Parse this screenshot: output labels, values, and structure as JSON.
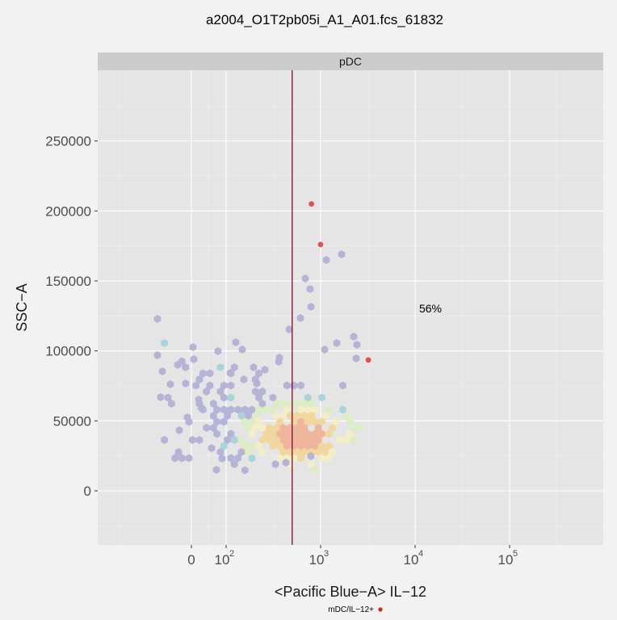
{
  "colors": {
    "panel_bg": "#e5e5e5",
    "strip_bg": "#cccccc",
    "page_bg": "#f2f2f2",
    "gate_line": "#7a0d2a",
    "pop_point": "#e05050",
    "legend_dot": "#e0201a",
    "hex_scale": [
      "#b5b3d6",
      "#a9d4dc",
      "#dcecc4",
      "#f3eec7",
      "#f1d79e",
      "#eeb59a",
      "#e37f80"
    ]
  },
  "chart_data": {
    "type": "scatter",
    "subtype": "hexbin",
    "title": "a2004_O1T2pb05i_A1_A01.fcs_61832",
    "strip": "pDC",
    "xlabel": "<Pacific Blue−A> IL−12",
    "ylabel": "SSC−A",
    "x_scale": "biexponential",
    "xlim": [
      -150,
      1000000
    ],
    "ylim": [
      -40000,
      300000
    ],
    "x_ticks": [
      {
        "value": 0,
        "label": "0"
      },
      {
        "value": 100,
        "base": "10",
        "exp": "2"
      },
      {
        "value": 1000,
        "base": "10",
        "exp": "3"
      },
      {
        "value": 10000,
        "base": "10",
        "exp": "4"
      },
      {
        "value": 100000,
        "base": "10",
        "exp": "5"
      }
    ],
    "y_ticks": [
      0,
      50000,
      100000,
      150000,
      200000,
      250000
    ],
    "gate_x": 500,
    "annotation": "56%",
    "legend": {
      "label": "mDC/IL−12+",
      "position": "bottom"
    },
    "grid": true,
    "highlight_points": [
      {
        "x": 800,
        "y": 205000
      },
      {
        "x": 1000,
        "y": 176000
      },
      {
        "x": 3200,
        "y": 93500
      }
    ],
    "hexbins": []
  }
}
